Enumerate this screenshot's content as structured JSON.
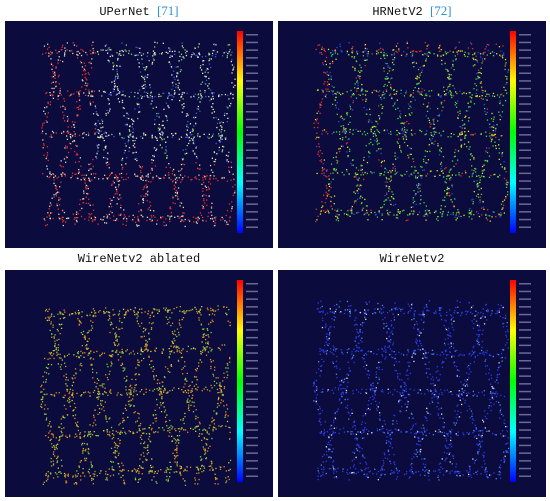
{
  "panels": [
    {
      "title": "UPerNet",
      "ref": "[71]"
    },
    {
      "title": "HRNetV2",
      "ref": "[72]"
    },
    {
      "title": "WireNetv2 ablated"
    },
    {
      "title": "WireNetv2"
    }
  ]
}
